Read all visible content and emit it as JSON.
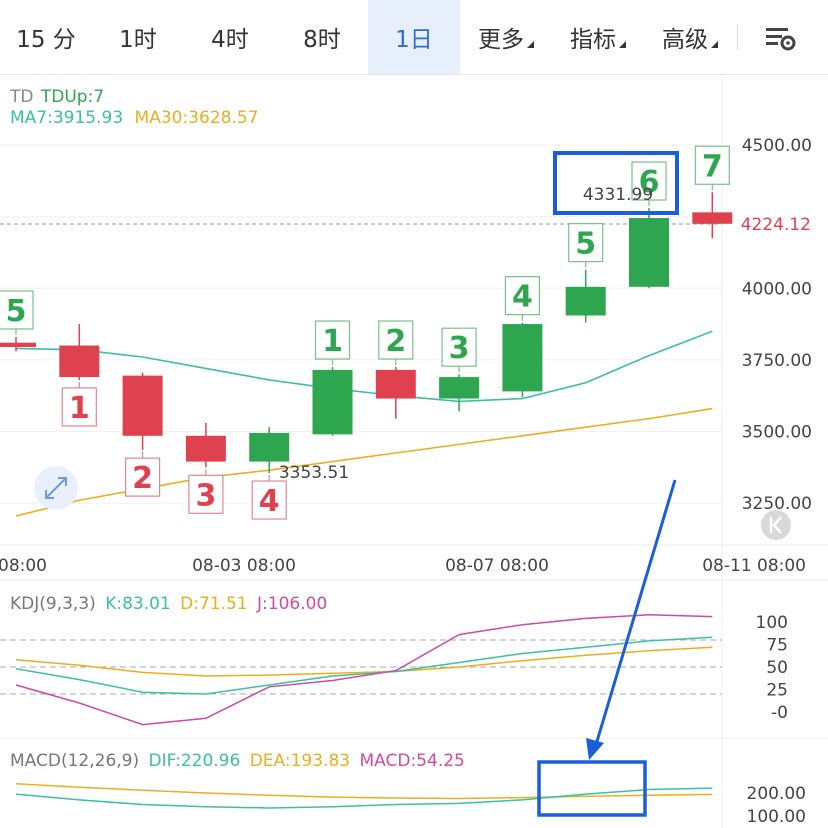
{
  "tabs": [
    {
      "label": "15 分",
      "active": false,
      "dropdown": false
    },
    {
      "label": "1时",
      "active": false,
      "dropdown": false
    },
    {
      "label": "4时",
      "active": false,
      "dropdown": false
    },
    {
      "label": "8时",
      "active": false,
      "dropdown": false
    },
    {
      "label": "1日",
      "active": true,
      "dropdown": false
    },
    {
      "label": "更多",
      "active": false,
      "dropdown": true
    },
    {
      "label": "指标",
      "active": false,
      "dropdown": true
    },
    {
      "label": "高级",
      "active": false,
      "dropdown": true
    }
  ],
  "settings_icon": "chart-settings-icon",
  "main_legend": {
    "td_label": "TD",
    "td_value": "TDUp:7",
    "ma7": "MA7:3915.93",
    "ma30": "MA30:3628.57"
  },
  "kdj_legend": {
    "title": "KDJ(9,3,3)",
    "k": "K:83.01",
    "d": "D:71.51",
    "j": "J:106.00"
  },
  "macd_legend": {
    "title": "MACD(12,26,9)",
    "dif": "DIF:220.96",
    "dea": "DEA:193.83",
    "macd": "MACD:54.25"
  },
  "colors": {
    "up": "#2ea64f",
    "down": "#e0414f",
    "ma7": "#3cbfa2",
    "ma30": "#e8b020",
    "j": "#d04aa0",
    "accent": "#2e6fd6",
    "annotation": "#1a5fd8"
  },
  "chart_data": {
    "type": "candlestick",
    "y_axis": {
      "ticks": [
        4500,
        4250,
        4000,
        3750,
        3500,
        3250
      ],
      "tick_labels": [
        "4500.00",
        "4000.00",
        "3750.00",
        "3500.00",
        "3250.00"
      ]
    },
    "x_axis": {
      "tick_labels": [
        "08:00",
        "08-03 08:00",
        "08-07 08:00",
        "08-11 08:00"
      ]
    },
    "last_price": {
      "value": 4224.12,
      "label": "4224.12"
    },
    "high_label": "4331.99",
    "low_label": "3353.51",
    "candles": [
      {
        "open": 3810,
        "close": 3795,
        "high": 3830,
        "low": 3780,
        "td": "5",
        "td_side": "up"
      },
      {
        "open": 3800,
        "close": 3690,
        "high": 3875,
        "low": 3680,
        "td": "1",
        "td_side": "down"
      },
      {
        "open": 3695,
        "close": 3485,
        "high": 3705,
        "low": 3435,
        "td": "2",
        "td_side": "down"
      },
      {
        "open": 3485,
        "close": 3395,
        "high": 3530,
        "low": 3375,
        "td": "3",
        "td_side": "down"
      },
      {
        "open": 3395,
        "close": 3495,
        "high": 3515,
        "low": 3355,
        "td": "4",
        "td_side": "down"
      },
      {
        "open": 3490,
        "close": 3715,
        "high": 3725,
        "low": 3485,
        "td": "1",
        "td_side": "up"
      },
      {
        "open": 3715,
        "close": 3615,
        "high": 3725,
        "low": 3545,
        "td": "2",
        "td_side": "up"
      },
      {
        "open": 3615,
        "close": 3690,
        "high": 3700,
        "low": 3570,
        "td": "3",
        "td_side": "up"
      },
      {
        "open": 3640,
        "close": 3875,
        "high": 3880,
        "low": 3620,
        "td": "4",
        "td_side": "up"
      },
      {
        "open": 3905,
        "close": 4005,
        "high": 4065,
        "low": 3880,
        "td": "5",
        "td_side": "up"
      },
      {
        "open": 4005,
        "close": 4245,
        "high": 4280,
        "low": 4000,
        "td": "6",
        "td_side": "up"
      },
      {
        "open": 4265,
        "close": 4225,
        "high": 4335,
        "low": 4175,
        "td": "7",
        "td_side": "up"
      }
    ],
    "ma7": [
      3790,
      3785,
      3760,
      3720,
      3680,
      3650,
      3625,
      3605,
      3615,
      3670,
      3765,
      3850
    ],
    "ma30": [
      3205,
      3260,
      3300,
      3340,
      3365,
      3395,
      3425,
      3455,
      3485,
      3515,
      3545,
      3580
    ],
    "kdj": {
      "axis_labels": [
        "100",
        "75",
        "50",
        "25",
        "-0"
      ],
      "ref_lines": [
        80,
        50,
        20
      ],
      "k": [
        48,
        36,
        22,
        20,
        30,
        40,
        45,
        55,
        65,
        72,
        79,
        83
      ],
      "d": [
        58,
        52,
        44,
        40,
        41,
        43,
        45,
        50,
        57,
        63,
        68,
        72
      ],
      "j": [
        30,
        10,
        -14,
        -7,
        28,
        35,
        46,
        86,
        97,
        104,
        108,
        106
      ]
    },
    "macd": {
      "axis_labels": [
        "200.00",
        "100.00"
      ],
      "dif": [
        195,
        170,
        150,
        140,
        135,
        140,
        150,
        155,
        170,
        195,
        215,
        221
      ],
      "dea": [
        240,
        225,
        212,
        200,
        190,
        182,
        178,
        176,
        180,
        186,
        190,
        194
      ]
    }
  }
}
